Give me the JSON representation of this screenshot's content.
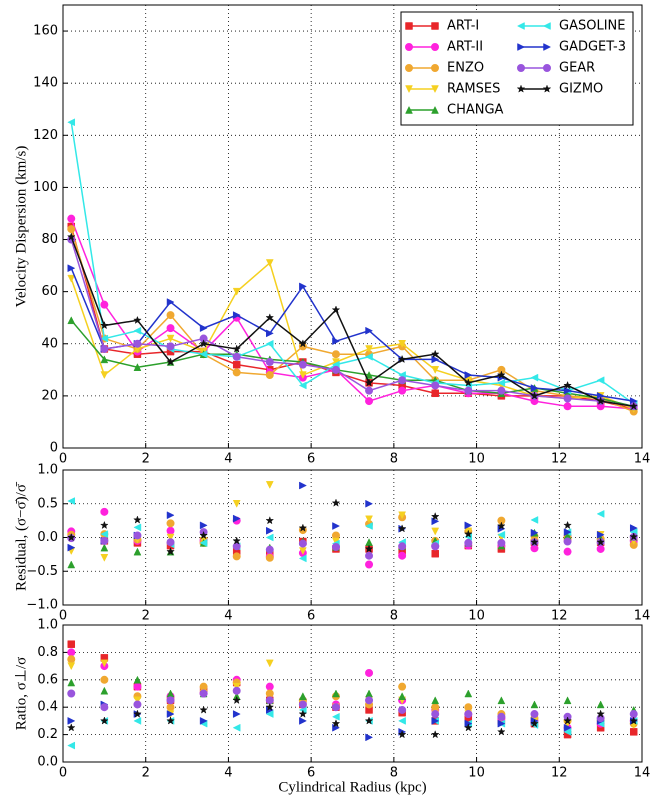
{
  "chart_data": [
    {
      "type": "line",
      "ylabel": "Velocity Dispersion (km/s)",
      "x": [
        0.2,
        1.0,
        1.8,
        2.6,
        3.4,
        4.2,
        5.0,
        5.8,
        6.6,
        7.4,
        8.2,
        9.0,
        9.8,
        10.6,
        11.4,
        12.2,
        13.0,
        13.8
      ],
      "xlim": [
        0,
        14
      ],
      "xticks": [
        0,
        2,
        4,
        6,
        8,
        10,
        12,
        14
      ],
      "ylim": [
        0,
        170
      ],
      "yticks": [
        0,
        20,
        40,
        60,
        80,
        100,
        120,
        140,
        160
      ],
      "grid": true,
      "legend": "upper right",
      "legend_columns": 2,
      "series": [
        {
          "name": "ART-I",
          "color": "#e8262a",
          "marker": "square",
          "values": [
            85,
            38,
            36,
            37,
            37,
            32,
            30,
            33,
            29,
            25,
            24,
            21,
            21,
            20,
            20,
            20,
            18,
            15
          ]
        },
        {
          "name": "ART-II",
          "color": "#ff22dd",
          "marker": "circle",
          "values": [
            88,
            55,
            37,
            46,
            37,
            50,
            29,
            27,
            30,
            18,
            22,
            24,
            21,
            21,
            18,
            16,
            16,
            15
          ]
        },
        {
          "name": "ENZO",
          "color": "#f0a830",
          "marker": "circle",
          "values": [
            84,
            42,
            38,
            51,
            36,
            29,
            28,
            39,
            36,
            36,
            39,
            26,
            26,
            30,
            22,
            20,
            19,
            14
          ]
        },
        {
          "name": "RAMSES",
          "color": "#f5d020",
          "marker": "tri-down",
          "values": [
            65,
            28,
            38,
            42,
            37,
            60,
            71,
            28,
            33,
            38,
            40,
            30,
            26,
            24,
            20,
            19,
            20,
            15
          ]
        },
        {
          "name": "CHANGA",
          "color": "#2ca02c",
          "marker": "tri-up",
          "values": [
            49,
            34,
            31,
            33,
            36,
            36,
            34,
            33,
            30,
            28,
            26,
            26,
            22,
            21,
            23,
            21,
            19,
            16
          ]
        },
        {
          "name": "GASOLINE",
          "color": "#33e8e8",
          "marker": "tri-left",
          "values": [
            125,
            42,
            45,
            38,
            36,
            35,
            40,
            24,
            32,
            35,
            28,
            25,
            24,
            25,
            27,
            22,
            26,
            17
          ]
        },
        {
          "name": "GADGET-3",
          "color": "#2233cc",
          "marker": "tri-right",
          "values": [
            69,
            38,
            40,
            56,
            46,
            51,
            44,
            62,
            41,
            45,
            34,
            34,
            28,
            27,
            23,
            22,
            20,
            18
          ]
        },
        {
          "name": "GEAR",
          "color": "#9955dd",
          "marker": "circle",
          "values": [
            80,
            38,
            40,
            39,
            42,
            35,
            33,
            32,
            30,
            22,
            26,
            24,
            22,
            22,
            20,
            19,
            18,
            16
          ]
        },
        {
          "name": "GIZMO",
          "color": "#111111",
          "marker": "star",
          "values": [
            81,
            47,
            49,
            33,
            40,
            38,
            50,
            40,
            53,
            25,
            34,
            36,
            25,
            28,
            20,
            24,
            18,
            16
          ]
        }
      ]
    },
    {
      "type": "scatter",
      "ylabel": "Residual, (σ−σ̄)/σ̄",
      "x": [
        0.2,
        1.0,
        1.8,
        2.6,
        3.4,
        4.2,
        5.0,
        5.8,
        6.6,
        7.4,
        8.2,
        9.0,
        9.8,
        10.6,
        11.4,
        12.2,
        13.0,
        13.8
      ],
      "xlim": [
        0,
        14
      ],
      "xticks": [
        0,
        2,
        4,
        6,
        8,
        10,
        12,
        14
      ],
      "ylim": [
        -1,
        1
      ],
      "yticks": [
        {
          "value": -1,
          "label": "−1.0"
        },
        {
          "value": -0.5,
          "label": "−0.5"
        },
        {
          "value": 0,
          "label": "0.0"
        },
        0.5,
        {
          "value": 1,
          "label": "1.0"
        }
      ],
      "grid": true,
      "series": [
        {
          "color": "#e8262a",
          "marker": "square",
          "values": [
            0.05,
            -0.05,
            -0.08,
            -0.12,
            -0.05,
            -0.2,
            -0.25,
            -0.06,
            -0.17,
            -0.17,
            -0.2,
            -0.24,
            -0.12,
            -0.17,
            -0.07,
            -0.01,
            -0.07,
            -0.05
          ]
        },
        {
          "color": "#ff22dd",
          "marker": "circle",
          "values": [
            0.09,
            0.38,
            -0.05,
            0.1,
            -0.05,
            0.25,
            -0.28,
            -0.23,
            -0.14,
            -0.4,
            -0.27,
            -0.13,
            -0.12,
            -0.12,
            -0.16,
            -0.21,
            -0.17,
            -0.05
          ]
        },
        {
          "color": "#f0a830",
          "marker": "circle",
          "values": [
            0.04,
            0.05,
            -0.03,
            0.21,
            -0.08,
            -0.28,
            -0.3,
            0.11,
            0.03,
            0.2,
            0.3,
            -0.05,
            0.09,
            0.25,
            0.02,
            -0.01,
            -0.02,
            -0.11
          ]
        },
        {
          "color": "#f5d020",
          "marker": "tri-down",
          "values": [
            -0.2,
            -0.3,
            -0.03,
            0,
            -0.05,
            0.5,
            0.78,
            -0.2,
            -0.06,
            0.27,
            0.33,
            0.09,
            0.09,
            0,
            -0.07,
            -0.06,
            0.04,
            -0.05
          ]
        },
        {
          "color": "#2ca02c",
          "marker": "tri-up",
          "values": [
            -0.4,
            -0.15,
            -0.21,
            -0.21,
            -0.08,
            -0.1,
            -0.15,
            -0.06,
            -0.14,
            -0.07,
            -0.13,
            -0.05,
            -0.08,
            -0.12,
            0.07,
            0.03,
            -0.02,
            0.01
          ]
        },
        {
          "color": "#33e8e8",
          "marker": "tri-left",
          "values": [
            0.54,
            0.05,
            0.15,
            -0.1,
            -0.08,
            -0.13,
            0,
            -0.31,
            -0.09,
            0.17,
            -0.07,
            -0.09,
            0.01,
            0.04,
            0.26,
            0.08,
            0.35,
            0.08
          ]
        },
        {
          "color": "#2233cc",
          "marker": "tri-right",
          "values": [
            -0.15,
            -0.05,
            0.03,
            0.33,
            0.18,
            0.28,
            0.1,
            0.77,
            0.17,
            0.5,
            0.13,
            0.24,
            0.18,
            0.13,
            0.07,
            0.08,
            0.04,
            0.14
          ]
        },
        {
          "color": "#9955dd",
          "marker": "circle",
          "values": [
            -0.01,
            -0.05,
            0.03,
            -0.07,
            0.08,
            -0.13,
            -0.18,
            -0.09,
            -0.14,
            -0.27,
            -0.13,
            -0.13,
            -0.08,
            -0.08,
            -0.07,
            -0.06,
            -0.07,
            0.01
          ]
        },
        {
          "color": "#111111",
          "marker": "star",
          "values": [
            0,
            0.18,
            0.26,
            -0.21,
            0.03,
            -0.05,
            0.25,
            0.14,
            0.51,
            -0.17,
            0.13,
            0.31,
            0.05,
            0.17,
            -0.07,
            0.18,
            -0.07,
            0.01
          ]
        }
      ]
    },
    {
      "type": "scatter",
      "ylabel": "Ratio, σ⊥/σ",
      "xlabel": "Cylindrical Radius (kpc)",
      "x": [
        0.2,
        1.0,
        1.8,
        2.6,
        3.4,
        4.2,
        5.0,
        5.8,
        6.6,
        7.4,
        8.2,
        9.0,
        9.8,
        10.6,
        11.4,
        12.2,
        13.0,
        13.8
      ],
      "xlim": [
        0,
        14
      ],
      "xticks": [
        0,
        2,
        4,
        6,
        8,
        10,
        12,
        14
      ],
      "ylim": [
        0,
        1
      ],
      "yticks": [
        {
          "value": 0,
          "label": "0.0"
        },
        0.2,
        0.4,
        0.6,
        0.8,
        {
          "value": 1,
          "label": "1.0"
        }
      ],
      "grid": true,
      "series": [
        {
          "color": "#e8262a",
          "marker": "square",
          "values": [
            0.86,
            0.76,
            0.55,
            0.45,
            0.52,
            0.58,
            0.45,
            0.42,
            0.4,
            0.38,
            0.36,
            0.3,
            0.32,
            0.3,
            0.28,
            0.2,
            0.25,
            0.22
          ]
        },
        {
          "color": "#ff22dd",
          "marker": "circle",
          "values": [
            0.8,
            0.7,
            0.55,
            0.48,
            0.5,
            0.6,
            0.55,
            0.45,
            0.42,
            0.65,
            0.45,
            0.38,
            0.35,
            0.32,
            0.3,
            0.25,
            0.28,
            0.3
          ]
        },
        {
          "color": "#f0a830",
          "marker": "circle",
          "values": [
            0.75,
            0.6,
            0.48,
            0.4,
            0.55,
            0.58,
            0.5,
            0.45,
            0.48,
            0.42,
            0.55,
            0.4,
            0.4,
            0.35,
            0.32,
            0.3,
            0.3,
            0.28
          ]
        },
        {
          "color": "#f5d020",
          "marker": "tri-down",
          "values": [
            0.7,
            0.72,
            0.45,
            0.35,
            0.5,
            0.55,
            0.72,
            0.42,
            0.4,
            0.45,
            0.45,
            0.35,
            0.35,
            0.32,
            0.3,
            0.28,
            0.3,
            0.27
          ]
        },
        {
          "color": "#2ca02c",
          "marker": "tri-up",
          "values": [
            0.58,
            0.52,
            0.6,
            0.5,
            0.5,
            0.48,
            0.45,
            0.48,
            0.5,
            0.5,
            0.48,
            0.45,
            0.5,
            0.45,
            0.42,
            0.45,
            0.42,
            0.38
          ]
        },
        {
          "color": "#33e8e8",
          "marker": "tri-left",
          "values": [
            0.12,
            0.3,
            0.3,
            0.3,
            0.28,
            0.25,
            0.35,
            0.38,
            0.33,
            0.3,
            0.3,
            0.3,
            0.28,
            0.28,
            0.27,
            0.22,
            0.28,
            0.3
          ]
        },
        {
          "color": "#2233cc",
          "marker": "tri-right",
          "values": [
            0.3,
            0.42,
            0.35,
            0.35,
            0.3,
            0.35,
            0.38,
            0.3,
            0.25,
            0.18,
            0.22,
            0.3,
            0.28,
            0.28,
            0.3,
            0.25,
            0.3,
            0.3
          ]
        },
        {
          "color": "#9955dd",
          "marker": "circle",
          "values": [
            0.5,
            0.4,
            0.42,
            0.45,
            0.5,
            0.52,
            0.45,
            0.42,
            0.4,
            0.45,
            0.38,
            0.35,
            0.35,
            0.33,
            0.35,
            0.33,
            0.32,
            0.35
          ]
        },
        {
          "color": "#111111",
          "marker": "star",
          "values": [
            0.25,
            0.3,
            0.35,
            0.3,
            0.38,
            0.45,
            0.4,
            0.35,
            0.28,
            0.3,
            0.2,
            0.2,
            0.25,
            0.22,
            0.28,
            0.3,
            0.35,
            0.3
          ]
        }
      ]
    }
  ]
}
